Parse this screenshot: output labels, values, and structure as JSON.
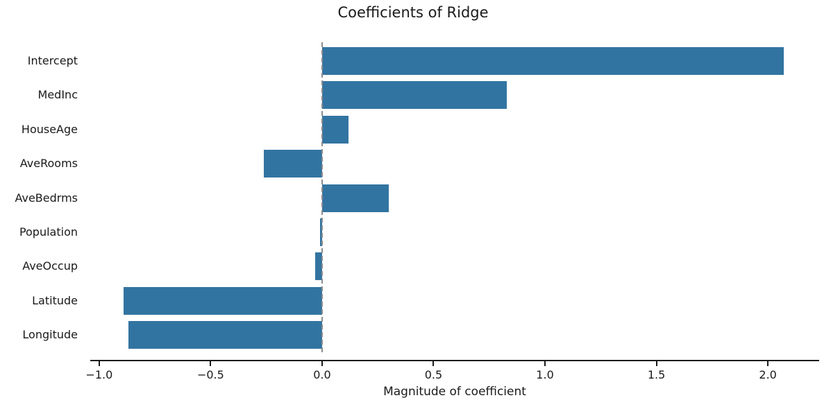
{
  "chart_data": {
    "type": "bar",
    "orientation": "horizontal",
    "title": "Coefficients of Ridge",
    "xlabel": "Magnitude of coefficient",
    "ylabel": "",
    "categories": [
      "Intercept",
      "MedInc",
      "HouseAge",
      "AveRooms",
      "AveBedrms",
      "Population",
      "AveOccup",
      "Latitude",
      "Longitude"
    ],
    "values": [
      2.07,
      0.83,
      0.12,
      -0.26,
      0.3,
      -0.01,
      -0.03,
      -0.89,
      -0.87
    ],
    "xlim": [
      -1.04,
      2.23
    ],
    "x_ticks": [
      -1.0,
      -0.5,
      0.0,
      0.5,
      1.0,
      1.5,
      2.0
    ],
    "x_tick_labels": [
      "−1.0",
      "−0.5",
      "0.0",
      "0.5",
      "1.0",
      "1.5",
      "2.0"
    ],
    "grid": false,
    "legend": null,
    "zero_reference_line": true,
    "colors": {
      "bar": "#3274a1",
      "zero_line": "#8c8c8c",
      "axis": "#1a1a1a",
      "text": "#1a1a1a",
      "background": "#ffffff"
    }
  }
}
